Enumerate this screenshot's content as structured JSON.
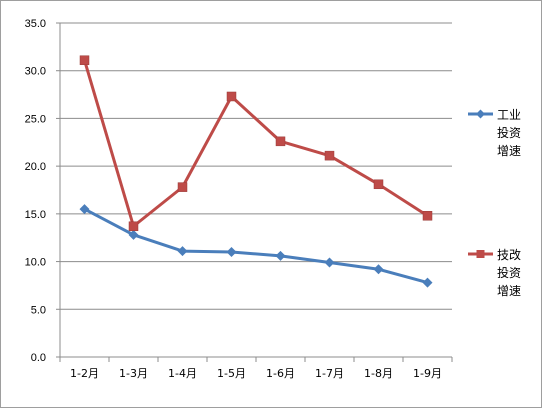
{
  "chart_data": {
    "type": "line",
    "categories": [
      "1-2月",
      "1-3月",
      "1-4月",
      "1-5月",
      "1-6月",
      "1-7月",
      "1-8月",
      "1-9月"
    ],
    "ylim": [
      0,
      35
    ],
    "yticks": [
      "0.0",
      "5.0",
      "10.0",
      "15.0",
      "20.0",
      "25.0",
      "30.0",
      "35.0"
    ],
    "grid": true,
    "legend_position": "right",
    "series": [
      {
        "name": "工业投资增速",
        "name_lines": [
          "工业",
          "投资",
          "增速"
        ],
        "color": "#4a7ebb",
        "marker": "diamond",
        "values": [
          15.5,
          12.8,
          11.1,
          11.0,
          10.6,
          9.9,
          9.2,
          7.8
        ]
      },
      {
        "name": "技改投资增速",
        "name_lines": [
          "技改",
          "投资",
          "增速"
        ],
        "color": "#be4b48",
        "marker": "square",
        "values": [
          31.1,
          13.7,
          17.8,
          27.3,
          22.6,
          21.1,
          18.1,
          14.8
        ]
      }
    ]
  }
}
